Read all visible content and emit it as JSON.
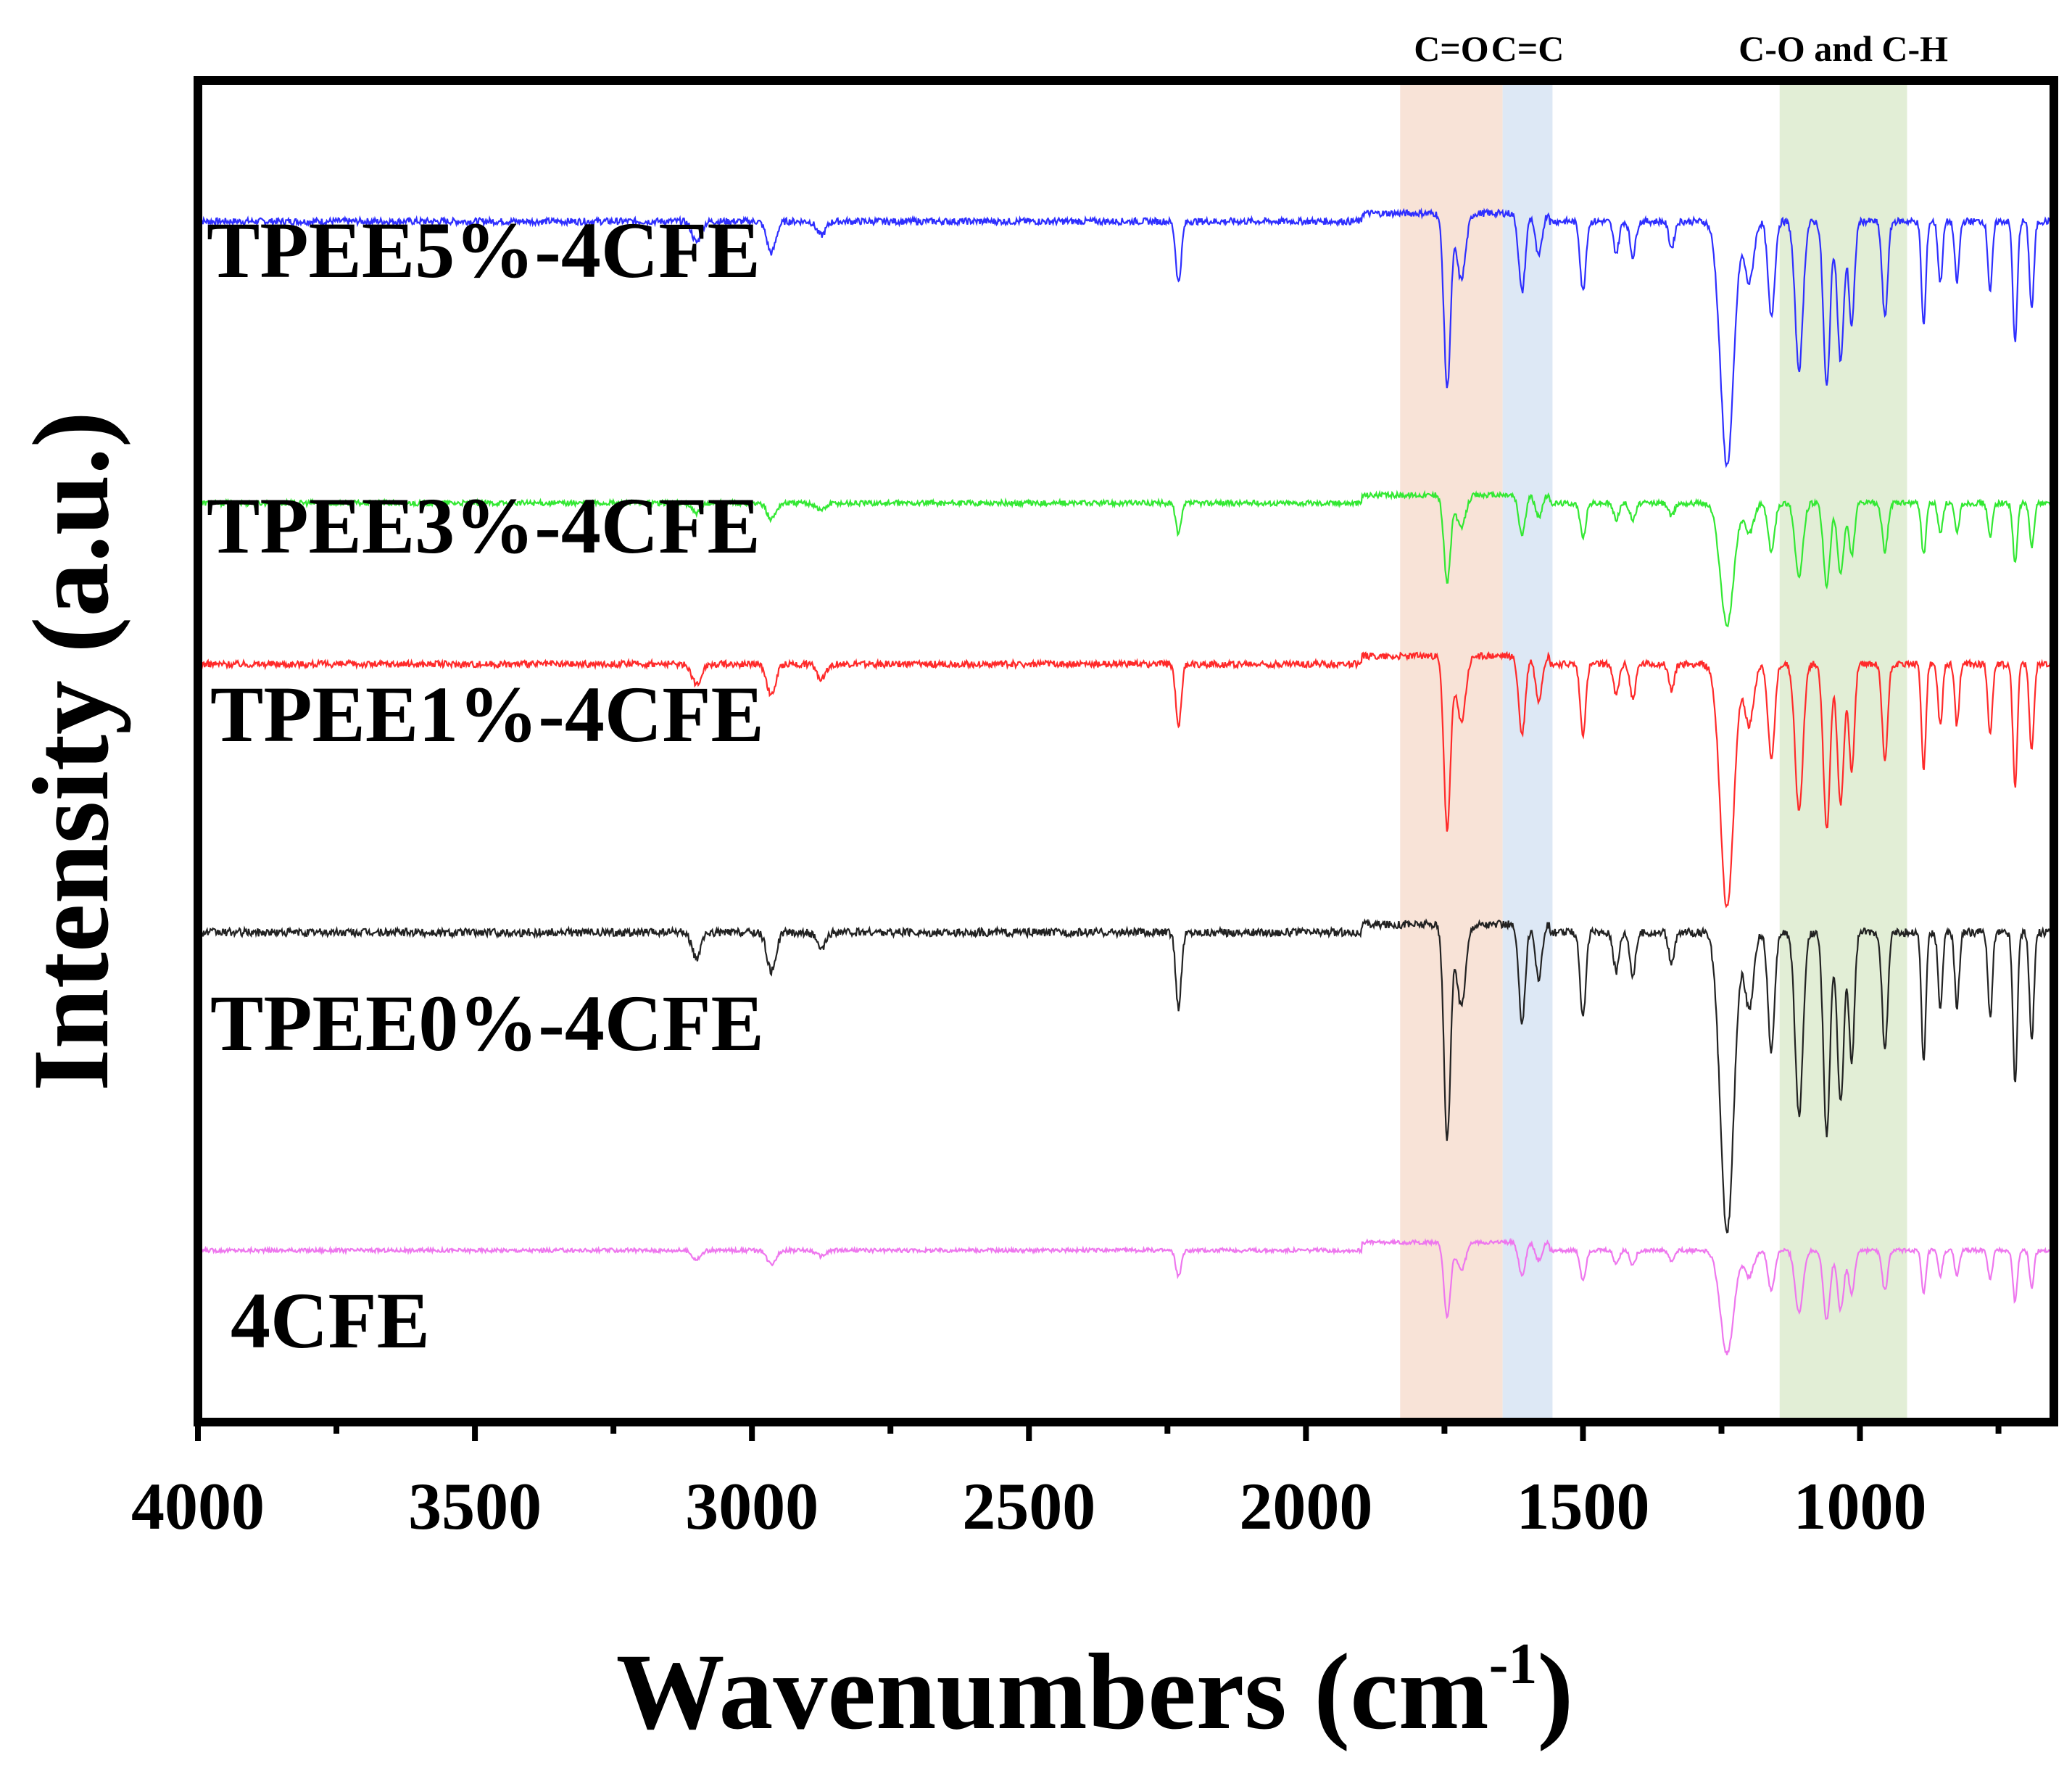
{
  "chart_data": {
    "type": "line",
    "title": "",
    "xlabel": "Wavenumbers (cm",
    "xlabel_superscript": "-1",
    "xlabel_close": ")",
    "ylabel": "Intensity (a.u.)",
    "xlim": [
      4000,
      650
    ],
    "x_reversed": true,
    "ylim": [
      0,
      100
    ],
    "y_ticks_visible": false,
    "grid": false,
    "x_ticks": [
      4000,
      3500,
      3000,
      2500,
      2000,
      1500,
      1000
    ],
    "x_tick_labels": [
      "4000",
      "3500",
      "3000",
      "2500",
      "2000",
      "1500",
      "1000"
    ],
    "bands": [
      {
        "label": "C=O",
        "from": 1830,
        "to": 1645,
        "color": "#f8e3d7"
      },
      {
        "label": "C=C",
        "from": 1645,
        "to": 1555,
        "color": "#dde8f5"
      },
      {
        "label": "C-O and C-H",
        "from": 1145,
        "to": 915,
        "color": "#e2eed6"
      }
    ],
    "peaks": [
      {
        "x": 3100,
        "d": 0.12,
        "w": 8
      },
      {
        "x": 2965,
        "d": 0.18,
        "w": 8
      },
      {
        "x": 2875,
        "d": 0.08,
        "w": 8
      },
      {
        "x": 2230,
        "d": 0.35,
        "w": 5
      },
      {
        "x": 1745,
        "d": 1.0,
        "w": 6
      },
      {
        "x": 1720,
        "d": 0.38,
        "w": 8
      },
      {
        "x": 1610,
        "d": 0.45,
        "w": 6
      },
      {
        "x": 1580,
        "d": 0.25,
        "w": 6
      },
      {
        "x": 1500,
        "d": 0.4,
        "w": 5
      },
      {
        "x": 1440,
        "d": 0.18,
        "w": 5
      },
      {
        "x": 1410,
        "d": 0.2,
        "w": 5
      },
      {
        "x": 1340,
        "d": 0.15,
        "w": 5
      },
      {
        "x": 1240,
        "d": 1.4,
        "w": 12
      },
      {
        "x": 1200,
        "d": 0.35,
        "w": 8
      },
      {
        "x": 1160,
        "d": 0.55,
        "w": 6
      },
      {
        "x": 1110,
        "d": 0.85,
        "w": 7
      },
      {
        "x": 1060,
        "d": 0.95,
        "w": 6
      },
      {
        "x": 1035,
        "d": 0.8,
        "w": 6
      },
      {
        "x": 1015,
        "d": 0.6,
        "w": 5
      },
      {
        "x": 955,
        "d": 0.55,
        "w": 5
      },
      {
        "x": 885,
        "d": 0.6,
        "w": 4
      },
      {
        "x": 855,
        "d": 0.35,
        "w": 4
      },
      {
        "x": 825,
        "d": 0.35,
        "w": 4
      },
      {
        "x": 765,
        "d": 0.4,
        "w": 4
      },
      {
        "x": 720,
        "d": 0.7,
        "w": 4
      },
      {
        "x": 690,
        "d": 0.5,
        "w": 4
      }
    ],
    "series": [
      {
        "name": "TPEE5%-4CFE",
        "color": "#2e2eff",
        "baseline": 89.5,
        "depth": 13.0,
        "noise": 0.25
      },
      {
        "name": "TPEE3%-4CFE",
        "color": "#33e833",
        "baseline": 68.5,
        "depth": 6.5,
        "noise": 0.2
      },
      {
        "name": "TPEE1%-4CFE",
        "color": "#ff2a2a",
        "baseline": 56.5,
        "depth": 13.0,
        "noise": 0.25
      },
      {
        "name": "TPEE0%-4CFE",
        "color": "#222222",
        "baseline": 36.5,
        "depth": 16.0,
        "noise": 0.3
      },
      {
        "name": "4CFE",
        "color": "#ee77ee",
        "baseline": 12.8,
        "depth": 5.5,
        "noise": 0.15
      }
    ]
  }
}
